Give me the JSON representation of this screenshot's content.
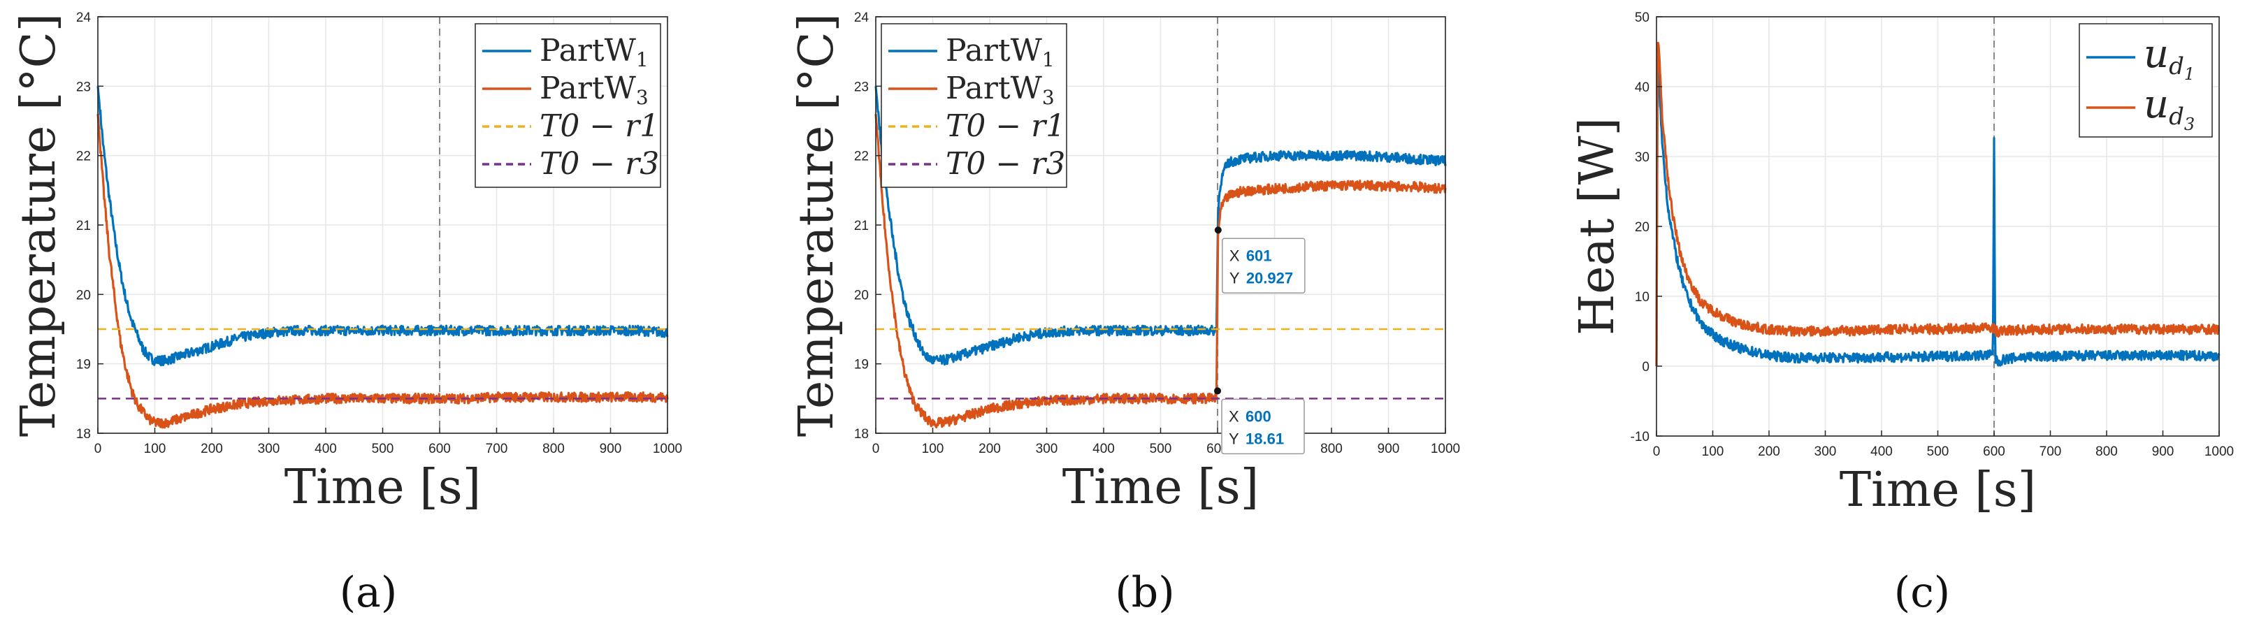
{
  "panels": [
    "(a)",
    "(b)",
    "(c)"
  ],
  "colors": {
    "partW1": "#0072BD",
    "partW3": "#D95319",
    "ref1": "#EDB120",
    "ref3": "#7E2F8E",
    "marker": "#888888"
  },
  "chart_data": [
    {
      "type": "line",
      "xlabel": "Time [s]",
      "ylabel": "Temperature [°C]",
      "xlim": [
        0,
        1000
      ],
      "ylim": [
        18,
        24
      ],
      "xticks": [
        "0",
        "100",
        "200",
        "300",
        "400",
        "500",
        "600",
        "700",
        "800",
        "900",
        "1000"
      ],
      "yticks": [
        "18",
        "19",
        "20",
        "21",
        "22",
        "23",
        "24"
      ],
      "grid": true,
      "legend_position": "top-right",
      "vline_x": 600,
      "series": [
        {
          "name": "PartW",
          "sub": "1",
          "style": "solid",
          "color": "#0072BD",
          "x": [
            0,
            10,
            20,
            30,
            40,
            50,
            60,
            70,
            80,
            90,
            100,
            120,
            140,
            160,
            180,
            200,
            220,
            250,
            280,
            300,
            350,
            400,
            450,
            500,
            550,
            600,
            650,
            700,
            750,
            800,
            850,
            900,
            950,
            1000
          ],
          "y": [
            23.0,
            22.1,
            21.4,
            20.8,
            20.3,
            19.9,
            19.6,
            19.4,
            19.2,
            19.1,
            19.05,
            19.05,
            19.1,
            19.15,
            19.2,
            19.25,
            19.3,
            19.38,
            19.42,
            19.45,
            19.48,
            19.48,
            19.48,
            19.48,
            19.48,
            19.48,
            19.48,
            19.48,
            19.48,
            19.48,
            19.48,
            19.48,
            19.48,
            19.45
          ]
        },
        {
          "name": "PartW",
          "sub": "3",
          "style": "solid",
          "color": "#D95319",
          "x": [
            0,
            10,
            20,
            30,
            40,
            50,
            60,
            70,
            80,
            90,
            100,
            120,
            140,
            160,
            180,
            200,
            220,
            250,
            280,
            300,
            350,
            400,
            450,
            500,
            550,
            600,
            650,
            700,
            750,
            800,
            850,
            900,
            950,
            1000
          ],
          "y": [
            22.6,
            21.5,
            20.6,
            19.9,
            19.3,
            18.9,
            18.6,
            18.4,
            18.3,
            18.2,
            18.15,
            18.15,
            18.2,
            18.25,
            18.3,
            18.35,
            18.38,
            18.42,
            18.45,
            18.47,
            18.48,
            18.5,
            18.5,
            18.5,
            18.5,
            18.5,
            18.5,
            18.52,
            18.52,
            18.52,
            18.52,
            18.52,
            18.52,
            18.52
          ]
        },
        {
          "name": "T0 − r1",
          "style": "dashed",
          "color": "#EDB120",
          "x": [
            0,
            1000
          ],
          "y": [
            19.5,
            19.5
          ]
        },
        {
          "name": "T0 − r3",
          "style": "dashed",
          "color": "#7E2F8E",
          "x": [
            0,
            1000
          ],
          "y": [
            18.5,
            18.5
          ]
        }
      ]
    },
    {
      "type": "line",
      "xlabel": "Time [s]",
      "ylabel": "Temperature [°C]",
      "xlim": [
        0,
        1000
      ],
      "ylim": [
        18,
        24
      ],
      "xticks": [
        "0",
        "100",
        "200",
        "300",
        "400",
        "500",
        "600",
        "700",
        "800",
        "900",
        "1000"
      ],
      "yticks": [
        "18",
        "19",
        "20",
        "21",
        "22",
        "23",
        "24"
      ],
      "grid": true,
      "legend_position": "top-left",
      "vline_x": 600,
      "datatips": [
        {
          "x": 601,
          "y": 20.927,
          "x_label": "X",
          "x_value": "601",
          "y_label": "Y",
          "y_value": "20.927"
        },
        {
          "x": 600,
          "y": 18.61,
          "x_label": "X",
          "x_value": "600",
          "y_label": "Y",
          "y_value": "18.61"
        }
      ],
      "series": [
        {
          "name": "PartW",
          "sub": "1",
          "style": "solid",
          "color": "#0072BD",
          "x": [
            0,
            10,
            20,
            30,
            40,
            50,
            60,
            70,
            80,
            90,
            100,
            120,
            140,
            160,
            180,
            200,
            220,
            250,
            280,
            300,
            350,
            400,
            450,
            500,
            550,
            598,
            601,
            605,
            612,
            620,
            640,
            660,
            700,
            750,
            800,
            850,
            900,
            950,
            1000
          ],
          "y": [
            23.0,
            22.1,
            21.4,
            20.8,
            20.3,
            19.9,
            19.6,
            19.4,
            19.2,
            19.1,
            19.05,
            19.05,
            19.1,
            19.15,
            19.2,
            19.25,
            19.3,
            19.38,
            19.42,
            19.45,
            19.48,
            19.48,
            19.48,
            19.48,
            19.48,
            19.48,
            21.2,
            21.6,
            21.8,
            21.9,
            21.95,
            21.97,
            22.0,
            22.0,
            22.0,
            22.0,
            21.98,
            21.95,
            21.92
          ]
        },
        {
          "name": "PartW",
          "sub": "3",
          "style": "solid",
          "color": "#D95319",
          "x": [
            0,
            10,
            20,
            30,
            40,
            50,
            60,
            70,
            80,
            90,
            100,
            120,
            140,
            160,
            180,
            200,
            220,
            250,
            280,
            300,
            350,
            400,
            450,
            500,
            550,
            598,
            601,
            605,
            612,
            620,
            640,
            660,
            700,
            750,
            800,
            850,
            900,
            950,
            1000
          ],
          "y": [
            22.6,
            21.5,
            20.6,
            19.9,
            19.3,
            18.9,
            18.6,
            18.4,
            18.3,
            18.2,
            18.15,
            18.15,
            18.2,
            18.25,
            18.3,
            18.35,
            18.38,
            18.42,
            18.45,
            18.47,
            18.48,
            18.5,
            18.5,
            18.5,
            18.5,
            18.5,
            20.9,
            21.2,
            21.35,
            21.42,
            21.48,
            21.5,
            21.52,
            21.55,
            21.57,
            21.57,
            21.56,
            21.55,
            21.52
          ]
        },
        {
          "name": "T0 − r1",
          "style": "dashed",
          "color": "#EDB120",
          "x": [
            0,
            1000
          ],
          "y": [
            19.5,
            19.5
          ]
        },
        {
          "name": "T0 − r3",
          "style": "dashed",
          "color": "#7E2F8E",
          "x": [
            0,
            1000
          ],
          "y": [
            18.5,
            18.5
          ]
        }
      ]
    },
    {
      "type": "line",
      "xlabel": "Time [s]",
      "ylabel": "Heat [W]",
      "xlim": [
        0,
        1000
      ],
      "ylim": [
        -10,
        50
      ],
      "xticks": [
        "0",
        "100",
        "200",
        "300",
        "400",
        "500",
        "600",
        "700",
        "800",
        "900",
        "1000"
      ],
      "yticks": [
        "-10",
        "0",
        "10",
        "20",
        "30",
        "40",
        "50"
      ],
      "grid": true,
      "legend_position": "top-right",
      "vline_x": 600,
      "series": [
        {
          "name": "u",
          "sub": "d",
          "subsub": "1",
          "style": "solid",
          "color": "#0072BD",
          "x": [
            0,
            2,
            5,
            10,
            20,
            30,
            40,
            50,
            60,
            80,
            100,
            120,
            150,
            200,
            250,
            300,
            350,
            400,
            450,
            500,
            550,
            598,
            600,
            602,
            606,
            620,
            650,
            700,
            750,
            800,
            850,
            900,
            950,
            1000
          ],
          "y": [
            0,
            45,
            40,
            32,
            23,
            18,
            14,
            11,
            9,
            6,
            4.5,
            3.5,
            2.5,
            1.5,
            1.2,
            1.2,
            1.2,
            1.3,
            1.3,
            1.4,
            1.5,
            1.6,
            33,
            1.0,
            0.6,
            1.0,
            1.3,
            1.4,
            1.5,
            1.5,
            1.5,
            1.5,
            1.5,
            1.5
          ]
        },
        {
          "name": "u",
          "sub": "d",
          "subsub": "3",
          "style": "solid",
          "color": "#D95319",
          "x": [
            0,
            2,
            5,
            10,
            20,
            30,
            40,
            50,
            60,
            80,
            100,
            120,
            150,
            200,
            250,
            300,
            350,
            400,
            450,
            500,
            550,
            598,
            600,
            602,
            606,
            620,
            650,
            700,
            750,
            800,
            850,
            900,
            950,
            1000
          ],
          "y": [
            0,
            47,
            44,
            36,
            27,
            21,
            17,
            14,
            12,
            9,
            8,
            7,
            6,
            5.2,
            5,
            5,
            5.1,
            5.2,
            5.3,
            5.3,
            5.4,
            5.5,
            5.5,
            5.1,
            4.9,
            5.1,
            5.2,
            5.3,
            5.3,
            5.3,
            5.3,
            5.3,
            5.3,
            5.3
          ]
        }
      ]
    }
  ]
}
